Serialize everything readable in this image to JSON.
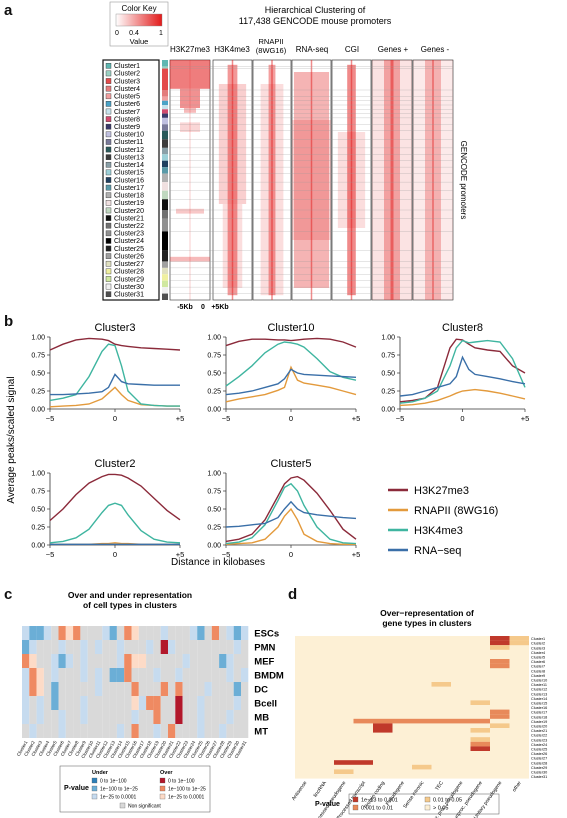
{
  "panel_a": {
    "letter": "a",
    "color_key": {
      "title": "Color Key",
      "ticks": [
        "0",
        "0.4",
        "1"
      ],
      "label": "Value"
    },
    "title_lines": [
      "Hierarchical Clustering of",
      "117,438 GENCODE mouse promoters"
    ],
    "columns": [
      "H3K27me3",
      "H3K4me3",
      "RNAPII (8WG16)",
      "RNA-seq",
      "CGI",
      "Genes +",
      "Genes -"
    ],
    "clusters": [
      "Cluster1",
      "Cluster2",
      "Cluster3",
      "Cluster4",
      "Cluster5",
      "Cluster6",
      "Cluster7",
      "Cluster8",
      "Cluster9",
      "Cluster10",
      "Cluster11",
      "Cluster12",
      "Cluster13",
      "Cluster14",
      "Cluster15",
      "Cluster16",
      "Cluster17",
      "Cluster18",
      "Cluster19",
      "Cluster20",
      "Cluster21",
      "Cluster22",
      "Cluster23",
      "Cluster24",
      "Cluster25",
      "Cluster26",
      "Cluster27",
      "Cluster28",
      "Cluster29",
      "Cluster30",
      "Cluster31"
    ],
    "cluster_colors": [
      "#5fb7b1",
      "#9ad0c2",
      "#e34a4a",
      "#e37c7c",
      "#f0a0a0",
      "#4aa3c7",
      "#c6e3ec",
      "#d24b6e",
      "#3a3a6a",
      "#c0c0e0",
      "#7a7a9a",
      "#2a5a5a",
      "#3c3c3c",
      "#8aa0a8",
      "#9cd0d8",
      "#204060",
      "#5a9aa8",
      "#b0b0b0",
      "#f0e0e0",
      "#c0d8c0",
      "#101010",
      "#707070",
      "#909090",
      "#000000",
      "#202020",
      "#a0a0a0",
      "#e0e0c0",
      "#f0f0a0",
      "#d0e8a0",
      "#f0f0f0",
      "#505050"
    ],
    "side_label": "GENCODE promoters",
    "xaxis": [
      "-5Kb",
      "0",
      "+5Kb"
    ]
  },
  "panel_b": {
    "letter": "b",
    "ylabel": "Average peaks/scaled signal",
    "xlabel": "Distance in kilobases",
    "legend": [
      {
        "name": "H3K27me3",
        "color": "#8b2a3a"
      },
      {
        "name": "RNAPII (8WG16)",
        "color": "#e39a3c"
      },
      {
        "name": "H3K4me3",
        "color": "#3fb5a0"
      },
      {
        "name": "RNA−seq",
        "color": "#3a6fa8"
      }
    ],
    "yticks": [
      "0.00",
      "0.25",
      "0.50",
      "0.75",
      "1.00"
    ],
    "xticks": [
      "−5",
      "0",
      "+5"
    ]
  },
  "chart_data": [
    {
      "type": "line",
      "title": "Cluster3",
      "x": [
        -5,
        -4,
        -3,
        -2,
        -1,
        -0.5,
        0,
        0.5,
        1,
        2,
        3,
        4,
        5
      ],
      "ylim": [
        0,
        1
      ],
      "series": [
        {
          "name": "H3K27me3",
          "values": [
            0.82,
            0.9,
            0.96,
            0.98,
            0.97,
            0.95,
            0.9,
            0.88,
            0.87,
            0.85,
            0.84,
            0.83,
            0.82
          ]
        },
        {
          "name": "RNAPII (8WG16)",
          "values": [
            0.03,
            0.04,
            0.05,
            0.07,
            0.14,
            0.22,
            0.3,
            0.2,
            0.12,
            0.06,
            0.05,
            0.04,
            0.04
          ]
        },
        {
          "name": "H3K4me3",
          "values": [
            0.12,
            0.15,
            0.2,
            0.45,
            0.8,
            0.9,
            0.88,
            0.6,
            0.25,
            0.07,
            0.05,
            0.04,
            0.04
          ]
        },
        {
          "name": "RNA−seq",
          "values": [
            0.2,
            0.2,
            0.21,
            0.22,
            0.24,
            0.3,
            0.48,
            0.38,
            0.35,
            0.34,
            0.33,
            0.33,
            0.33
          ]
        }
      ]
    },
    {
      "type": "line",
      "title": "Cluster10",
      "x": [
        -5,
        -4,
        -3,
        -2,
        -1,
        -0.5,
        0,
        0.5,
        1,
        2,
        3,
        4,
        5
      ],
      "ylim": [
        0,
        1
      ],
      "series": [
        {
          "name": "H3K27me3",
          "values": [
            0.88,
            0.94,
            0.97,
            0.97,
            0.96,
            0.96,
            0.95,
            0.96,
            0.97,
            0.98,
            0.97,
            0.93,
            0.86
          ]
        },
        {
          "name": "RNAPII (8WG16)",
          "values": [
            0.1,
            0.14,
            0.17,
            0.2,
            0.26,
            0.3,
            0.58,
            0.4,
            0.36,
            0.33,
            0.3,
            0.25,
            0.2
          ]
        },
        {
          "name": "H3K4me3",
          "values": [
            0.32,
            0.45,
            0.6,
            0.78,
            0.9,
            0.93,
            0.92,
            0.9,
            0.86,
            0.7,
            0.52,
            0.44,
            0.4
          ]
        },
        {
          "name": "RNA−seq",
          "values": [
            0.2,
            0.22,
            0.25,
            0.3,
            0.35,
            0.42,
            0.55,
            0.5,
            0.48,
            0.47,
            0.46,
            0.45,
            0.44
          ]
        }
      ]
    },
    {
      "type": "line",
      "title": "Cluster8",
      "x": [
        -5,
        -4,
        -3,
        -2,
        -1,
        -0.5,
        0,
        0.5,
        1,
        2,
        3,
        4,
        5
      ],
      "ylim": [
        0,
        1
      ],
      "series": [
        {
          "name": "H3K27me3",
          "values": [
            0.1,
            0.12,
            0.15,
            0.3,
            0.85,
            0.97,
            0.96,
            0.9,
            0.85,
            0.82,
            0.8,
            0.6,
            0.5
          ]
        },
        {
          "name": "RNAPII (8WG16)",
          "values": [
            0.05,
            0.06,
            0.08,
            0.12,
            0.18,
            0.22,
            0.25,
            0.26,
            0.27,
            0.25,
            0.22,
            0.18,
            0.14
          ]
        },
        {
          "name": "H3K4me3",
          "values": [
            0.08,
            0.1,
            0.15,
            0.25,
            0.6,
            0.85,
            0.95,
            0.92,
            0.93,
            0.95,
            0.93,
            0.7,
            0.3
          ]
        },
        {
          "name": "RNA−seq",
          "values": [
            0.18,
            0.2,
            0.25,
            0.3,
            0.35,
            0.45,
            0.72,
            0.55,
            0.48,
            0.45,
            0.42,
            0.38,
            0.35
          ]
        }
      ]
    },
    {
      "type": "line",
      "title": "Cluster2",
      "x": [
        -5,
        -4,
        -3,
        -2,
        -1,
        -0.5,
        0,
        0.5,
        1,
        2,
        3,
        4,
        5
      ],
      "ylim": [
        0,
        1
      ],
      "series": [
        {
          "name": "H3K27me3",
          "values": [
            0.34,
            0.5,
            0.7,
            0.86,
            0.95,
            0.98,
            0.98,
            0.97,
            0.93,
            0.82,
            0.65,
            0.48,
            0.35
          ]
        },
        {
          "name": "RNAPII (8WG16)",
          "values": [
            0.01,
            0.01,
            0.01,
            0.01,
            0.02,
            0.02,
            0.03,
            0.02,
            0.02,
            0.01,
            0.01,
            0.01,
            0.01
          ]
        },
        {
          "name": "H3K4me3",
          "values": [
            0.03,
            0.05,
            0.1,
            0.22,
            0.45,
            0.55,
            0.58,
            0.55,
            0.42,
            0.2,
            0.08,
            0.04,
            0.03
          ]
        },
        {
          "name": "RNA−seq",
          "values": [
            0.01,
            0.01,
            0.01,
            0.01,
            0.01,
            0.01,
            0.01,
            0.01,
            0.01,
            0.01,
            0.01,
            0.01,
            0.01
          ]
        }
      ]
    },
    {
      "type": "line",
      "title": "Cluster5",
      "x": [
        -5,
        -4,
        -3,
        -2,
        -1,
        -0.5,
        0,
        0.5,
        1,
        2,
        3,
        4,
        5
      ],
      "ylim": [
        0,
        1
      ],
      "series": [
        {
          "name": "H3K27me3",
          "values": [
            0.05,
            0.08,
            0.15,
            0.35,
            0.68,
            0.85,
            0.93,
            0.95,
            0.9,
            0.72,
            0.48,
            0.22,
            0.08
          ]
        },
        {
          "name": "RNAPII (8WG16)",
          "values": [
            0.01,
            0.02,
            0.03,
            0.08,
            0.25,
            0.4,
            0.5,
            0.35,
            0.15,
            0.05,
            0.02,
            0.01,
            0.01
          ]
        },
        {
          "name": "H3K4me3",
          "values": [
            0.02,
            0.04,
            0.1,
            0.28,
            0.62,
            0.8,
            0.85,
            0.75,
            0.55,
            0.25,
            0.08,
            0.03,
            0.02
          ]
        },
        {
          "name": "RNA−seq",
          "values": [
            0.25,
            0.26,
            0.28,
            0.3,
            0.38,
            0.5,
            0.6,
            0.5,
            0.45,
            0.42,
            0.4,
            0.38,
            0.37
          ]
        }
      ]
    }
  ],
  "panel_c": {
    "letter": "c",
    "title_lines": [
      "Over and under representation",
      "of cell types in clusters"
    ],
    "rows": [
      "ESCs",
      "PMN",
      "MEF",
      "BMDM",
      "DC",
      "Bcell",
      "MB",
      "MT"
    ],
    "legend_title": "P-value",
    "legend_under": "Under",
    "legend_over": "Over",
    "legend_items": [
      {
        "label": "0 to 1e−100",
        "color": "#2c7fb8"
      },
      {
        "label": "1e−100 to 1e−25",
        "color": "#6baed6"
      },
      {
        "label": "1e−25 to 0.0001",
        "color": "#c6dbef"
      },
      {
        "label": "0 to 1e−100",
        "color": "#b2182b"
      },
      {
        "label": "1e−100 to 1e−25",
        "color": "#ef8a62"
      },
      {
        "label": "1e−25 to 0.0001",
        "color": "#fddbc7"
      }
    ],
    "legend_ns": "Non significant"
  },
  "panel_d": {
    "letter": "d",
    "title_lines": [
      "Over−representation of",
      "gene types in clusters"
    ],
    "xlabels": [
      "Antisense",
      "lincRNA",
      "Processed pseudogene",
      "Processed transcript",
      "Protein coding",
      "Pseudogene",
      "Sense intronic",
      "TEC",
      "Transcr. proc. pseudogene",
      "Transcr. unproc. pseudogene",
      "Unitary pseudogene",
      "other"
    ],
    "legend_title": "P-value",
    "legend_items": [
      {
        "label": "1e−13 to 0.001",
        "color": "#c0392b"
      },
      {
        "label": "0.01 to 0.05",
        "color": "#f5c98b"
      },
      {
        "label": "0.001 to 0.01",
        "color": "#e8895a"
      },
      {
        "label": "> 0.05",
        "color": "#fdf0d5"
      }
    ]
  }
}
